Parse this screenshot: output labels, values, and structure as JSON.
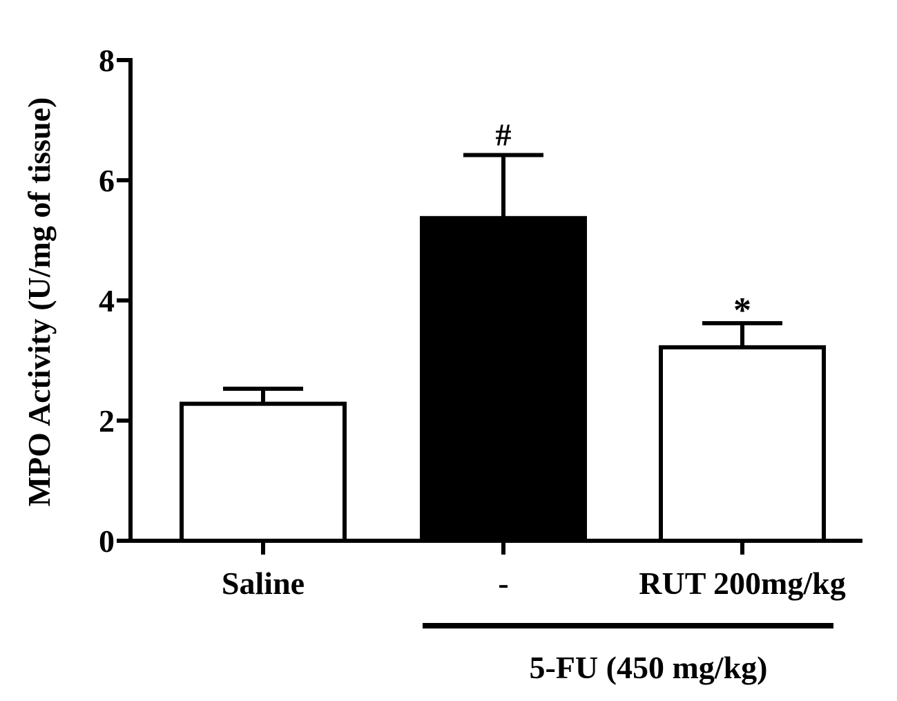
{
  "chart_data": {
    "type": "bar",
    "ylabel": "MPO Activity (U/mg of tissue)",
    "ylim": [
      0,
      8
    ],
    "yticks": [
      0,
      2,
      4,
      6,
      8
    ],
    "grid": false,
    "categories": [
      "Saline",
      "-",
      "RUT 200mg/kg"
    ],
    "values": [
      2.28,
      5.37,
      3.22
    ],
    "errors": [
      0.25,
      1.05,
      0.4
    ],
    "fill_colors": [
      "#ffffff",
      "#000000",
      "#ffffff"
    ],
    "significance": [
      "",
      "#",
      "*"
    ],
    "group_label": "5-FU (450 mg/kg)",
    "group_spans": [
      "-",
      "RUT 200mg/kg"
    ]
  }
}
